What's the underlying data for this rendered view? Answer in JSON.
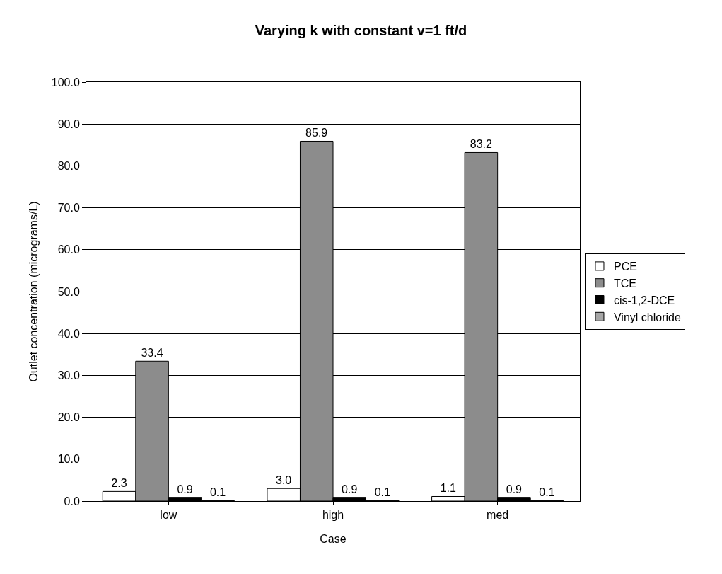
{
  "chart_data": {
    "type": "bar",
    "title": "Varying k with constant v=1 ft/d",
    "xlabel": "Case",
    "ylabel": "Outlet concentration (micrograms/L)",
    "categories": [
      "low",
      "high",
      "med"
    ],
    "series": [
      {
        "name": "PCE",
        "color": "#ffffff",
        "values": [
          2.3,
          3.0,
          1.1
        ],
        "value_labels": [
          "2.3",
          "3.0",
          "1.1"
        ]
      },
      {
        "name": "TCE",
        "color": "#8c8c8c",
        "values": [
          33.4,
          85.9,
          83.2
        ],
        "value_labels": [
          "33.4",
          "85.9",
          "83.2"
        ]
      },
      {
        "name": "cis-1,2-DCE",
        "color": "#000000",
        "values": [
          0.9,
          0.9,
          0.9
        ],
        "value_labels": [
          "0.9",
          "0.9",
          "0.9"
        ]
      },
      {
        "name": "Vinyl chloride",
        "color": "#a6a6a6",
        "values": [
          0.1,
          0.1,
          0.1
        ],
        "value_labels": [
          "0.1",
          "0.1",
          "0.1"
        ]
      }
    ],
    "ylim": [
      0,
      100
    ],
    "yticks": [
      {
        "value": 0,
        "label": "0.0"
      },
      {
        "value": 10,
        "label": "10.0"
      },
      {
        "value": 20,
        "label": "20.0"
      },
      {
        "value": 30,
        "label": "30.0"
      },
      {
        "value": 40,
        "label": "40.0"
      },
      {
        "value": 50,
        "label": "50.0"
      },
      {
        "value": 60,
        "label": "60.0"
      },
      {
        "value": 70,
        "label": "70.0"
      },
      {
        "value": 80,
        "label": "80.0"
      },
      {
        "value": 90,
        "label": "90.0"
      },
      {
        "value": 100,
        "label": "100.0"
      }
    ],
    "grid": "y",
    "legend": "right"
  }
}
